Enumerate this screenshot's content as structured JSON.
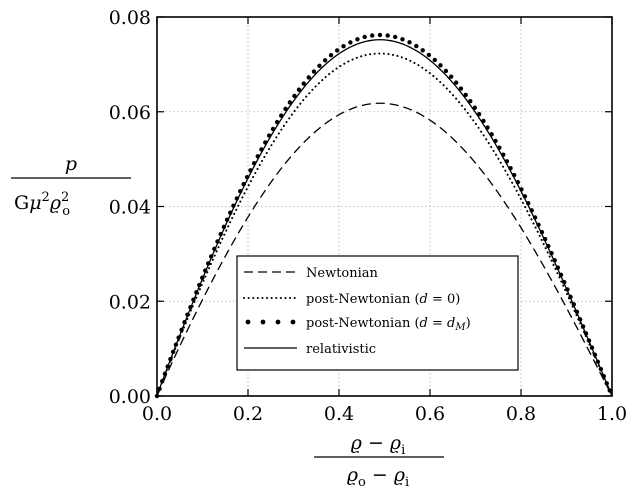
{
  "chart_data": {
    "type": "line",
    "title": "",
    "xlim": [
      0.0,
      1.0
    ],
    "ylim": [
      0.0,
      0.08
    ],
    "xticks": [
      "0.0",
      "0.2",
      "0.4",
      "0.6",
      "0.8",
      "1.0"
    ],
    "yticks": [
      "0.00",
      "0.02",
      "0.04",
      "0.06",
      "0.08"
    ],
    "grid": true,
    "legend_position": "bottom-center",
    "xlabel": {
      "num_a": "ϱ",
      "num_op": " − ",
      "num_b": "ϱ",
      "num_b_sub": "i",
      "den_a": "ϱ",
      "den_a_sub": "o",
      "den_op": " − ",
      "den_b": "ϱ",
      "den_b_sub": "i"
    },
    "ylabel": {
      "num": "p",
      "den_g": "G",
      "den_mu": "μ",
      "den_mu_sup": "2",
      "den_rho": "ϱ",
      "den_rho_sup": "2",
      "den_rho_sub": "o"
    },
    "series": [
      {
        "name": "Newtonian",
        "style": "dashed",
        "peak_x": 0.49,
        "peak_y": 0.0618,
        "skew": 0.0
      },
      {
        "name": "post-Newtonian (d = 0)",
        "style": "dotted",
        "peak_x": 0.49,
        "peak_y": 0.0723,
        "skew": 0.0
      },
      {
        "name": "post-Newtonian (d = d_M)",
        "style": "large-dots",
        "peak_x": 0.49,
        "peak_y": 0.0762,
        "skew": 0.0
      },
      {
        "name": "relativistic",
        "style": "solid",
        "peak_x": 0.49,
        "peak_y": 0.0752,
        "skew": 0.0
      }
    ],
    "legend": {
      "entries": [
        {
          "text": "Newtonian"
        },
        {
          "text": "post-Newtonian (",
          "var": "d",
          "rest": " = 0)"
        },
        {
          "text": "post-Newtonian (",
          "var": "d",
          "rest": " = ",
          "var2": "d",
          "var2_sub": "M",
          "close": ")"
        },
        {
          "text": "relativistic"
        }
      ]
    },
    "colors": {
      "line": "#000000",
      "grid": "#b0b0b0",
      "frame": "#000000"
    }
  }
}
